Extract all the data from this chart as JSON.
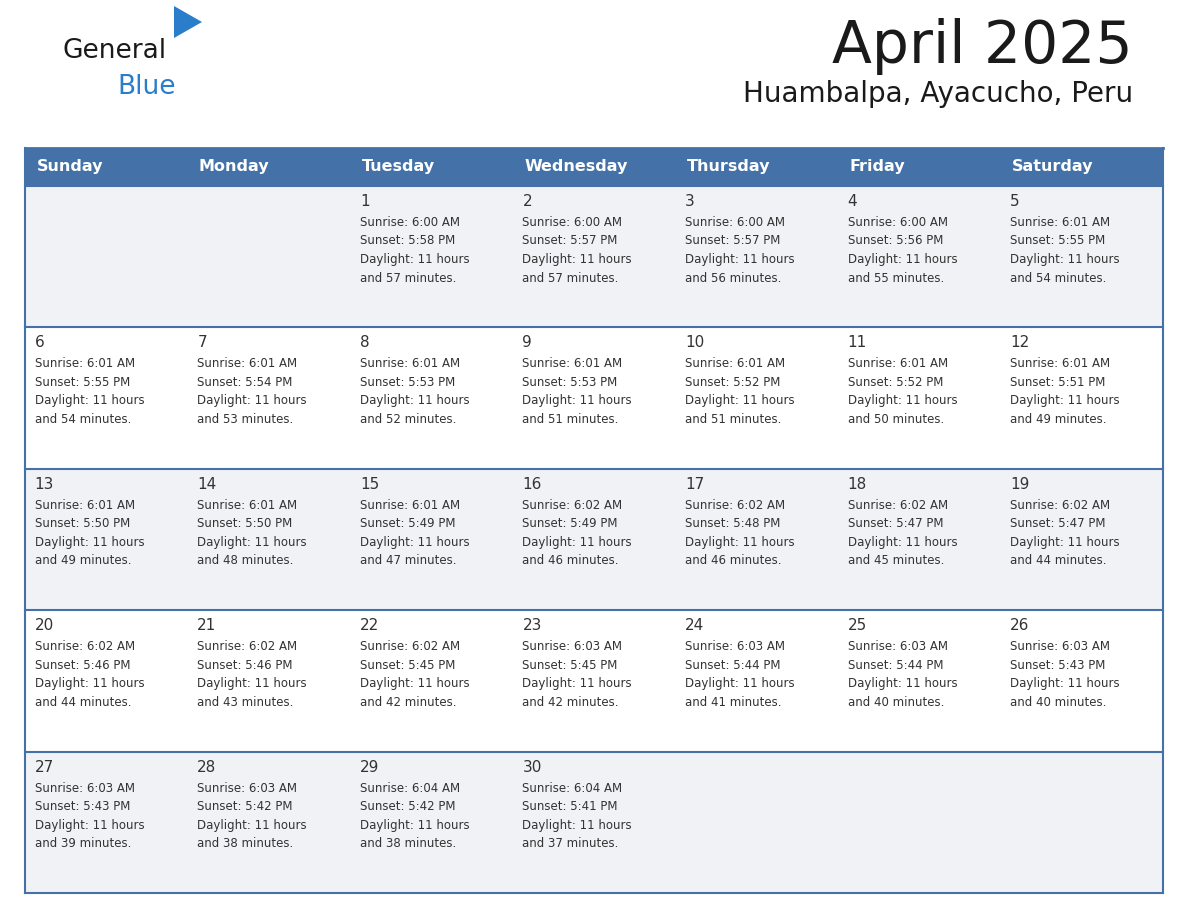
{
  "title": "April 2025",
  "subtitle": "Huambalpa, Ayacucho, Peru",
  "days_of_week": [
    "Sunday",
    "Monday",
    "Tuesday",
    "Wednesday",
    "Thursday",
    "Friday",
    "Saturday"
  ],
  "header_bg": "#4472a8",
  "header_text": "#ffffff",
  "cell_bg_odd": "#f0f2f5",
  "cell_bg_even": "#ffffff",
  "grid_line_color": "#4472a8",
  "title_color": "#1a1a1a",
  "subtitle_color": "#1a1a1a",
  "day_number_color": "#333333",
  "cell_text_color": "#333333",
  "logo_general_color": "#1a1a1a",
  "logo_blue_color": "#2a7dc9",
  "logo_triangle_color": "#2a7dc9",
  "calendar": [
    [
      {
        "day": null,
        "sunrise": null,
        "sunset": null,
        "daylight": null
      },
      {
        "day": null,
        "sunrise": null,
        "sunset": null,
        "daylight": null
      },
      {
        "day": 1,
        "sunrise": "Sunrise: 6:00 AM",
        "sunset": "Sunset: 5:58 PM",
        "daylight": "Daylight: 11 hours\nand 57 minutes."
      },
      {
        "day": 2,
        "sunrise": "Sunrise: 6:00 AM",
        "sunset": "Sunset: 5:57 PM",
        "daylight": "Daylight: 11 hours\nand 57 minutes."
      },
      {
        "day": 3,
        "sunrise": "Sunrise: 6:00 AM",
        "sunset": "Sunset: 5:57 PM",
        "daylight": "Daylight: 11 hours\nand 56 minutes."
      },
      {
        "day": 4,
        "sunrise": "Sunrise: 6:00 AM",
        "sunset": "Sunset: 5:56 PM",
        "daylight": "Daylight: 11 hours\nand 55 minutes."
      },
      {
        "day": 5,
        "sunrise": "Sunrise: 6:01 AM",
        "sunset": "Sunset: 5:55 PM",
        "daylight": "Daylight: 11 hours\nand 54 minutes."
      }
    ],
    [
      {
        "day": 6,
        "sunrise": "Sunrise: 6:01 AM",
        "sunset": "Sunset: 5:55 PM",
        "daylight": "Daylight: 11 hours\nand 54 minutes."
      },
      {
        "day": 7,
        "sunrise": "Sunrise: 6:01 AM",
        "sunset": "Sunset: 5:54 PM",
        "daylight": "Daylight: 11 hours\nand 53 minutes."
      },
      {
        "day": 8,
        "sunrise": "Sunrise: 6:01 AM",
        "sunset": "Sunset: 5:53 PM",
        "daylight": "Daylight: 11 hours\nand 52 minutes."
      },
      {
        "day": 9,
        "sunrise": "Sunrise: 6:01 AM",
        "sunset": "Sunset: 5:53 PM",
        "daylight": "Daylight: 11 hours\nand 51 minutes."
      },
      {
        "day": 10,
        "sunrise": "Sunrise: 6:01 AM",
        "sunset": "Sunset: 5:52 PM",
        "daylight": "Daylight: 11 hours\nand 51 minutes."
      },
      {
        "day": 11,
        "sunrise": "Sunrise: 6:01 AM",
        "sunset": "Sunset: 5:52 PM",
        "daylight": "Daylight: 11 hours\nand 50 minutes."
      },
      {
        "day": 12,
        "sunrise": "Sunrise: 6:01 AM",
        "sunset": "Sunset: 5:51 PM",
        "daylight": "Daylight: 11 hours\nand 49 minutes."
      }
    ],
    [
      {
        "day": 13,
        "sunrise": "Sunrise: 6:01 AM",
        "sunset": "Sunset: 5:50 PM",
        "daylight": "Daylight: 11 hours\nand 49 minutes."
      },
      {
        "day": 14,
        "sunrise": "Sunrise: 6:01 AM",
        "sunset": "Sunset: 5:50 PM",
        "daylight": "Daylight: 11 hours\nand 48 minutes."
      },
      {
        "day": 15,
        "sunrise": "Sunrise: 6:01 AM",
        "sunset": "Sunset: 5:49 PM",
        "daylight": "Daylight: 11 hours\nand 47 minutes."
      },
      {
        "day": 16,
        "sunrise": "Sunrise: 6:02 AM",
        "sunset": "Sunset: 5:49 PM",
        "daylight": "Daylight: 11 hours\nand 46 minutes."
      },
      {
        "day": 17,
        "sunrise": "Sunrise: 6:02 AM",
        "sunset": "Sunset: 5:48 PM",
        "daylight": "Daylight: 11 hours\nand 46 minutes."
      },
      {
        "day": 18,
        "sunrise": "Sunrise: 6:02 AM",
        "sunset": "Sunset: 5:47 PM",
        "daylight": "Daylight: 11 hours\nand 45 minutes."
      },
      {
        "day": 19,
        "sunrise": "Sunrise: 6:02 AM",
        "sunset": "Sunset: 5:47 PM",
        "daylight": "Daylight: 11 hours\nand 44 minutes."
      }
    ],
    [
      {
        "day": 20,
        "sunrise": "Sunrise: 6:02 AM",
        "sunset": "Sunset: 5:46 PM",
        "daylight": "Daylight: 11 hours\nand 44 minutes."
      },
      {
        "day": 21,
        "sunrise": "Sunrise: 6:02 AM",
        "sunset": "Sunset: 5:46 PM",
        "daylight": "Daylight: 11 hours\nand 43 minutes."
      },
      {
        "day": 22,
        "sunrise": "Sunrise: 6:02 AM",
        "sunset": "Sunset: 5:45 PM",
        "daylight": "Daylight: 11 hours\nand 42 minutes."
      },
      {
        "day": 23,
        "sunrise": "Sunrise: 6:03 AM",
        "sunset": "Sunset: 5:45 PM",
        "daylight": "Daylight: 11 hours\nand 42 minutes."
      },
      {
        "day": 24,
        "sunrise": "Sunrise: 6:03 AM",
        "sunset": "Sunset: 5:44 PM",
        "daylight": "Daylight: 11 hours\nand 41 minutes."
      },
      {
        "day": 25,
        "sunrise": "Sunrise: 6:03 AM",
        "sunset": "Sunset: 5:44 PM",
        "daylight": "Daylight: 11 hours\nand 40 minutes."
      },
      {
        "day": 26,
        "sunrise": "Sunrise: 6:03 AM",
        "sunset": "Sunset: 5:43 PM",
        "daylight": "Daylight: 11 hours\nand 40 minutes."
      }
    ],
    [
      {
        "day": 27,
        "sunrise": "Sunrise: 6:03 AM",
        "sunset": "Sunset: 5:43 PM",
        "daylight": "Daylight: 11 hours\nand 39 minutes."
      },
      {
        "day": 28,
        "sunrise": "Sunrise: 6:03 AM",
        "sunset": "Sunset: 5:42 PM",
        "daylight": "Daylight: 11 hours\nand 38 minutes."
      },
      {
        "day": 29,
        "sunrise": "Sunrise: 6:04 AM",
        "sunset": "Sunset: 5:42 PM",
        "daylight": "Daylight: 11 hours\nand 38 minutes."
      },
      {
        "day": 30,
        "sunrise": "Sunrise: 6:04 AM",
        "sunset": "Sunset: 5:41 PM",
        "daylight": "Daylight: 11 hours\nand 37 minutes."
      },
      {
        "day": null,
        "sunrise": null,
        "sunset": null,
        "daylight": null
      },
      {
        "day": null,
        "sunrise": null,
        "sunset": null,
        "daylight": null
      },
      {
        "day": null,
        "sunrise": null,
        "sunset": null,
        "daylight": null
      }
    ]
  ]
}
